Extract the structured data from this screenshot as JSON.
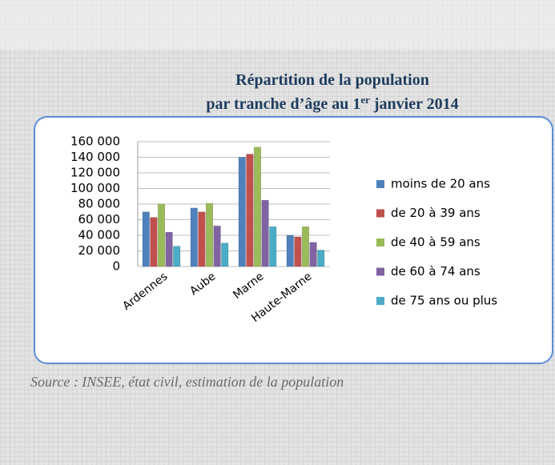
{
  "chart_data": {
    "type": "bar",
    "title": {
      "line1": "Répartition de la population",
      "line2": [
        "par tranche d’âge au 1",
        "er",
        "janvier 2014"
      ]
    },
    "source": "Source : INSEE, état civil, estimation de la population",
    "categories": [
      "Ardennes",
      "Aube",
      "Marne",
      "Haute-Marne"
    ],
    "series": [
      {
        "name": "moins de 20 ans",
        "color": "#4f81bd",
        "values": [
          70000,
          75000,
          140000,
          40000
        ]
      },
      {
        "name": "de 20 à 39 ans",
        "color": "#c0504d",
        "values": [
          63000,
          70000,
          144000,
          38000
        ]
      },
      {
        "name": "de 40 à 59 ans",
        "color": "#9bbb59",
        "values": [
          80000,
          81000,
          153000,
          51000
        ]
      },
      {
        "name": "de 60 à 74 ans",
        "color": "#8064a2",
        "values": [
          44000,
          52000,
          85000,
          31000
        ]
      },
      {
        "name": "de 75 ans ou plus",
        "color": "#4bacc6",
        "values": [
          26000,
          30000,
          51000,
          21000
        ]
      }
    ],
    "ylim": [
      0,
      160000
    ],
    "yticks": [
      0,
      {
        "value": 20000,
        "label": "20 000"
      },
      {
        "value": 40000,
        "label": "40 000"
      },
      {
        "value": 60000,
        "label": "60 000"
      },
      {
        "value": 80000,
        "label": "80 000"
      },
      {
        "value": 100000,
        "label": "100 000"
      },
      {
        "value": 120000,
        "label": "120 000"
      },
      {
        "value": 140000,
        "label": "140 000"
      },
      {
        "value": 160000,
        "label": "160 000"
      }
    ],
    "grid": true,
    "legend": "right"
  }
}
